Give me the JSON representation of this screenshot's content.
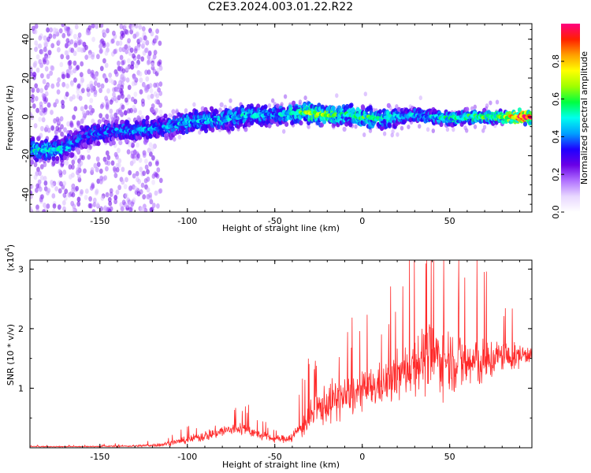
{
  "title": "C2E3.2024.003.01.22.R22",
  "chart_data": [
    {
      "type": "heatmap",
      "xlabel": "Height of straight line (km)",
      "ylabel": "Frequency (Hz)",
      "xlim": [
        -190,
        97
      ],
      "ylim": [
        -49,
        48
      ],
      "xticks": [
        -150,
        -100,
        -50,
        0,
        50
      ],
      "yticks": [
        -40,
        -20,
        0,
        20,
        40
      ],
      "colorbar": {
        "label": "Normalized spectral amplitude",
        "range": [
          0.0,
          1.0
        ],
        "ticks": [
          0.0,
          0.2,
          0.4,
          0.6,
          0.8
        ],
        "colors": [
          "#ffffff",
          "#e8d8ff",
          "#b070ff",
          "#6a00e6",
          "#1e00ff",
          "#00a0ff",
          "#00ffee",
          "#00ff40",
          "#a0ff00",
          "#ffff00",
          "#ffa000",
          "#ff2000",
          "#ff0080"
        ]
      },
      "ridge": {
        "x": [
          -190,
          -180,
          -170,
          -165,
          -160,
          -150,
          -140,
          -130,
          -120,
          -110,
          -100,
          -90,
          -80,
          -70,
          -60,
          -50,
          -40,
          -30,
          -20,
          -10,
          0,
          10,
          20,
          30,
          40,
          50,
          60,
          70,
          80,
          90,
          97
        ],
        "frequency": [
          -17,
          -17,
          -16,
          -13,
          -10,
          -8,
          -7,
          -7,
          -6,
          -5,
          -3,
          -2,
          -1,
          0,
          1,
          1,
          2,
          2,
          1,
          1,
          0,
          -1,
          0,
          1,
          0,
          -1,
          0,
          0,
          0,
          0,
          0
        ],
        "peak_amplitude": [
          0.45,
          0.5,
          0.45,
          0.38,
          0.35,
          0.38,
          0.4,
          0.4,
          0.4,
          0.42,
          0.45,
          0.42,
          0.45,
          0.45,
          0.45,
          0.42,
          0.5,
          0.62,
          0.6,
          0.5,
          0.55,
          0.5,
          0.45,
          0.45,
          0.45,
          0.5,
          0.55,
          0.55,
          0.6,
          0.9,
          0.9
        ]
      }
    },
    {
      "type": "line",
      "xlabel": "Height of straight line (km)",
      "ylabel": "SNR (10 * v/v)",
      "y_scale_label": "(x10",
      "y_scale_exponent": "4",
      "xlim": [
        -190,
        97
      ],
      "ylim": [
        0,
        3.15
      ],
      "xticks": [
        -150,
        -100,
        -50,
        0,
        50
      ],
      "yticks": [
        1,
        2,
        3
      ],
      "series": [
        {
          "color": "#ff2a2a",
          "x": [
            -190,
            -160,
            -130,
            -115,
            -110,
            -100,
            -90,
            -80,
            -75,
            -70,
            -65,
            -60,
            -50,
            -45,
            -40,
            -35,
            -30,
            -25,
            -20,
            -15,
            -10,
            -5,
            0,
            5,
            10,
            15,
            20,
            25,
            30,
            35,
            40,
            45,
            50,
            55,
            60,
            65,
            70,
            75,
            80,
            85,
            90,
            97
          ],
          "mean": [
            0.02,
            0.02,
            0.03,
            0.05,
            0.08,
            0.13,
            0.2,
            0.28,
            0.3,
            0.33,
            0.3,
            0.22,
            0.15,
            0.15,
            0.18,
            0.35,
            0.5,
            0.65,
            0.75,
            0.8,
            0.85,
            0.9,
            0.95,
            1.0,
            1.05,
            1.1,
            1.2,
            1.3,
            1.45,
            1.5,
            1.55,
            1.5,
            1.5,
            1.45,
            1.4,
            1.45,
            1.4,
            1.5,
            1.55,
            1.5,
            1.55,
            1.6
          ],
          "spread": [
            0.01,
            0.01,
            0.02,
            0.04,
            0.05,
            0.08,
            0.12,
            0.14,
            0.15,
            0.15,
            0.14,
            0.1,
            0.08,
            0.08,
            0.12,
            0.25,
            0.35,
            0.4,
            0.45,
            0.45,
            0.45,
            0.45,
            0.4,
            0.45,
            0.45,
            0.5,
            0.55,
            0.6,
            0.7,
            0.75,
            0.8,
            0.75,
            0.7,
            0.7,
            0.65,
            0.6,
            0.55,
            0.45,
            0.35,
            0.3,
            0.25,
            0.2
          ]
        }
      ]
    }
  ]
}
